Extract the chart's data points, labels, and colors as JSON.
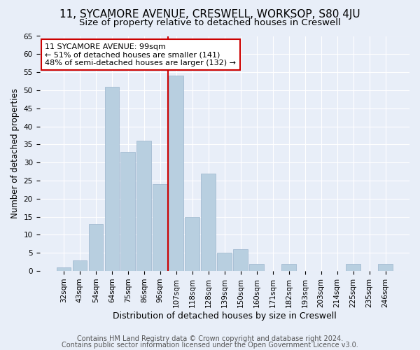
{
  "title": "11, SYCAMORE AVENUE, CRESWELL, WORKSOP, S80 4JU",
  "subtitle": "Size of property relative to detached houses in Creswell",
  "xlabel": "Distribution of detached houses by size in Creswell",
  "ylabel": "Number of detached properties",
  "categories": [
    "32sqm",
    "43sqm",
    "54sqm",
    "64sqm",
    "75sqm",
    "86sqm",
    "96sqm",
    "107sqm",
    "118sqm",
    "128sqm",
    "139sqm",
    "150sqm",
    "160sqm",
    "171sqm",
    "182sqm",
    "193sqm",
    "203sqm",
    "214sqm",
    "225sqm",
    "235sqm",
    "246sqm"
  ],
  "values": [
    1,
    3,
    13,
    51,
    33,
    36,
    24,
    54,
    15,
    27,
    5,
    6,
    2,
    0,
    2,
    0,
    0,
    0,
    2,
    0,
    2
  ],
  "bar_color": "#b8cfe0",
  "bar_edge_color": "#9ab4cc",
  "red_line_x": 6.5,
  "annotation_text": "11 SYCAMORE AVENUE: 99sqm\n← 51% of detached houses are smaller (141)\n48% of semi-detached houses are larger (132) →",
  "annotation_box_color": "#ffffff",
  "annotation_box_edge_color": "#cc0000",
  "ylim": [
    0,
    65
  ],
  "yticks": [
    0,
    5,
    10,
    15,
    20,
    25,
    30,
    35,
    40,
    45,
    50,
    55,
    60,
    65
  ],
  "bg_color": "#e8eef8",
  "plot_bg_color": "#e8eef8",
  "grid_color": "#ffffff",
  "footer_line1": "Contains HM Land Registry data © Crown copyright and database right 2024.",
  "footer_line2": "Contains public sector information licensed under the Open Government Licence v3.0.",
  "title_fontsize": 11,
  "subtitle_fontsize": 9.5,
  "xlabel_fontsize": 9,
  "ylabel_fontsize": 8.5,
  "tick_fontsize": 7.5,
  "annotation_fontsize": 8,
  "footer_fontsize": 7
}
